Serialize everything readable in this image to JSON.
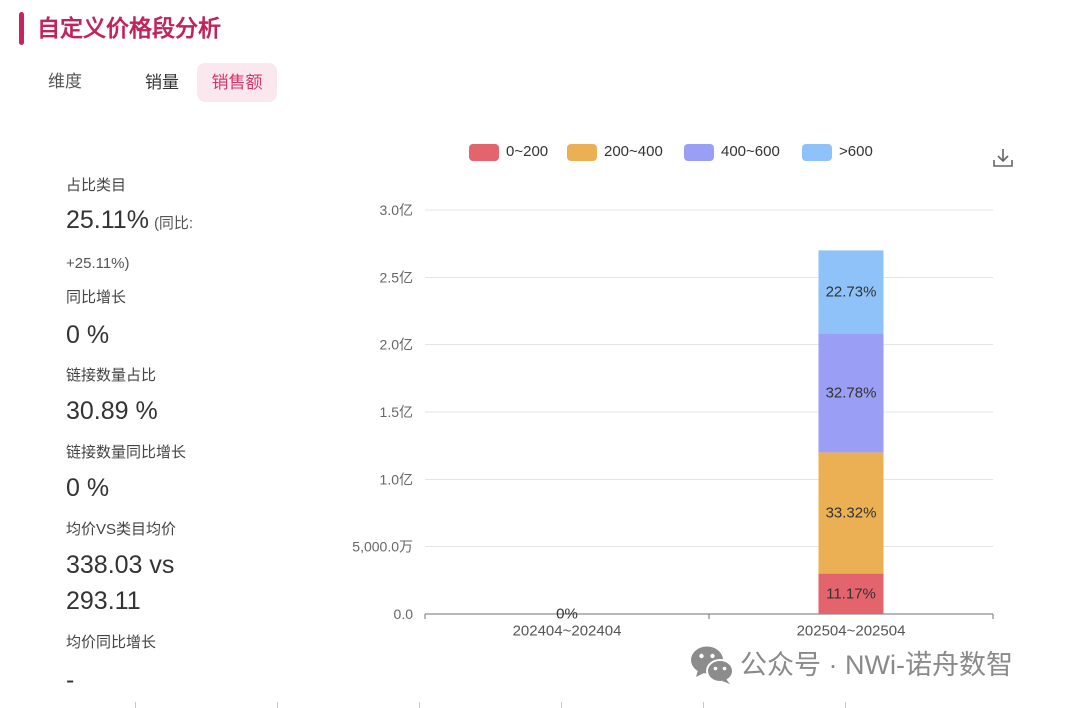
{
  "theme": {
    "accent": "#c8235f",
    "title_color": "#c4225c",
    "tab_active_bg": "#fbe7ee",
    "tab_active_text": "#d4356b",
    "watermark_color": "#8a8a8a"
  },
  "header": {
    "title": "自定义价格段分析"
  },
  "tabs": {
    "dimension_label": "维度",
    "items": [
      {
        "label": "销量",
        "selected": false
      },
      {
        "label": "销售额",
        "selected": true
      }
    ]
  },
  "metrics": [
    {
      "label": "占比类目",
      "value": "25.11%",
      "note": "(同比: +25.11%)"
    },
    {
      "label": "同比增长",
      "value": "0 %"
    },
    {
      "label": "链接数量占比",
      "value": "30.89 %"
    },
    {
      "label": "链接数量同比增长",
      "value": "0 %"
    },
    {
      "label": "均价VS类目均价",
      "value": "338.03 vs 293.11"
    },
    {
      "label": "均价同比增长",
      "value": "-"
    }
  ],
  "toolbar": {
    "download_icon": "download-icon"
  },
  "watermark": {
    "icon": "wechat-icon",
    "text": "公众号 · NWi-诺舟数智"
  },
  "chart_data": {
    "type": "bar",
    "stacked": true,
    "categories": [
      "202404~202404",
      "202504~202504"
    ],
    "series": [
      {
        "name": "0~200",
        "color": "#e4646e",
        "values": [
          0,
          0.3
        ],
        "labels": [
          "0%",
          "11.17%"
        ]
      },
      {
        "name": "200~400",
        "color": "#ebb053",
        "values": [
          0,
          0.9
        ],
        "labels": [
          null,
          "33.32%"
        ]
      },
      {
        "name": "400~600",
        "color": "#9a9ef5",
        "values": [
          0,
          0.885
        ],
        "labels": [
          null,
          "32.78%"
        ]
      },
      {
        "name": ">600",
        "color": "#8ec2f9",
        "values": [
          0,
          0.615
        ],
        "labels": [
          null,
          "22.73%"
        ]
      }
    ],
    "ylim": [
      0,
      3.0
    ],
    "yticks": [
      0,
      0.5,
      1.0,
      1.5,
      2.0,
      2.5,
      3.0
    ],
    "ytick_labels": [
      "0.0",
      "5,000.0万",
      "1.0亿",
      "1.5亿",
      "2.0亿",
      "2.5亿",
      "3.0亿"
    ],
    "grid": true,
    "legend": "top-center"
  }
}
